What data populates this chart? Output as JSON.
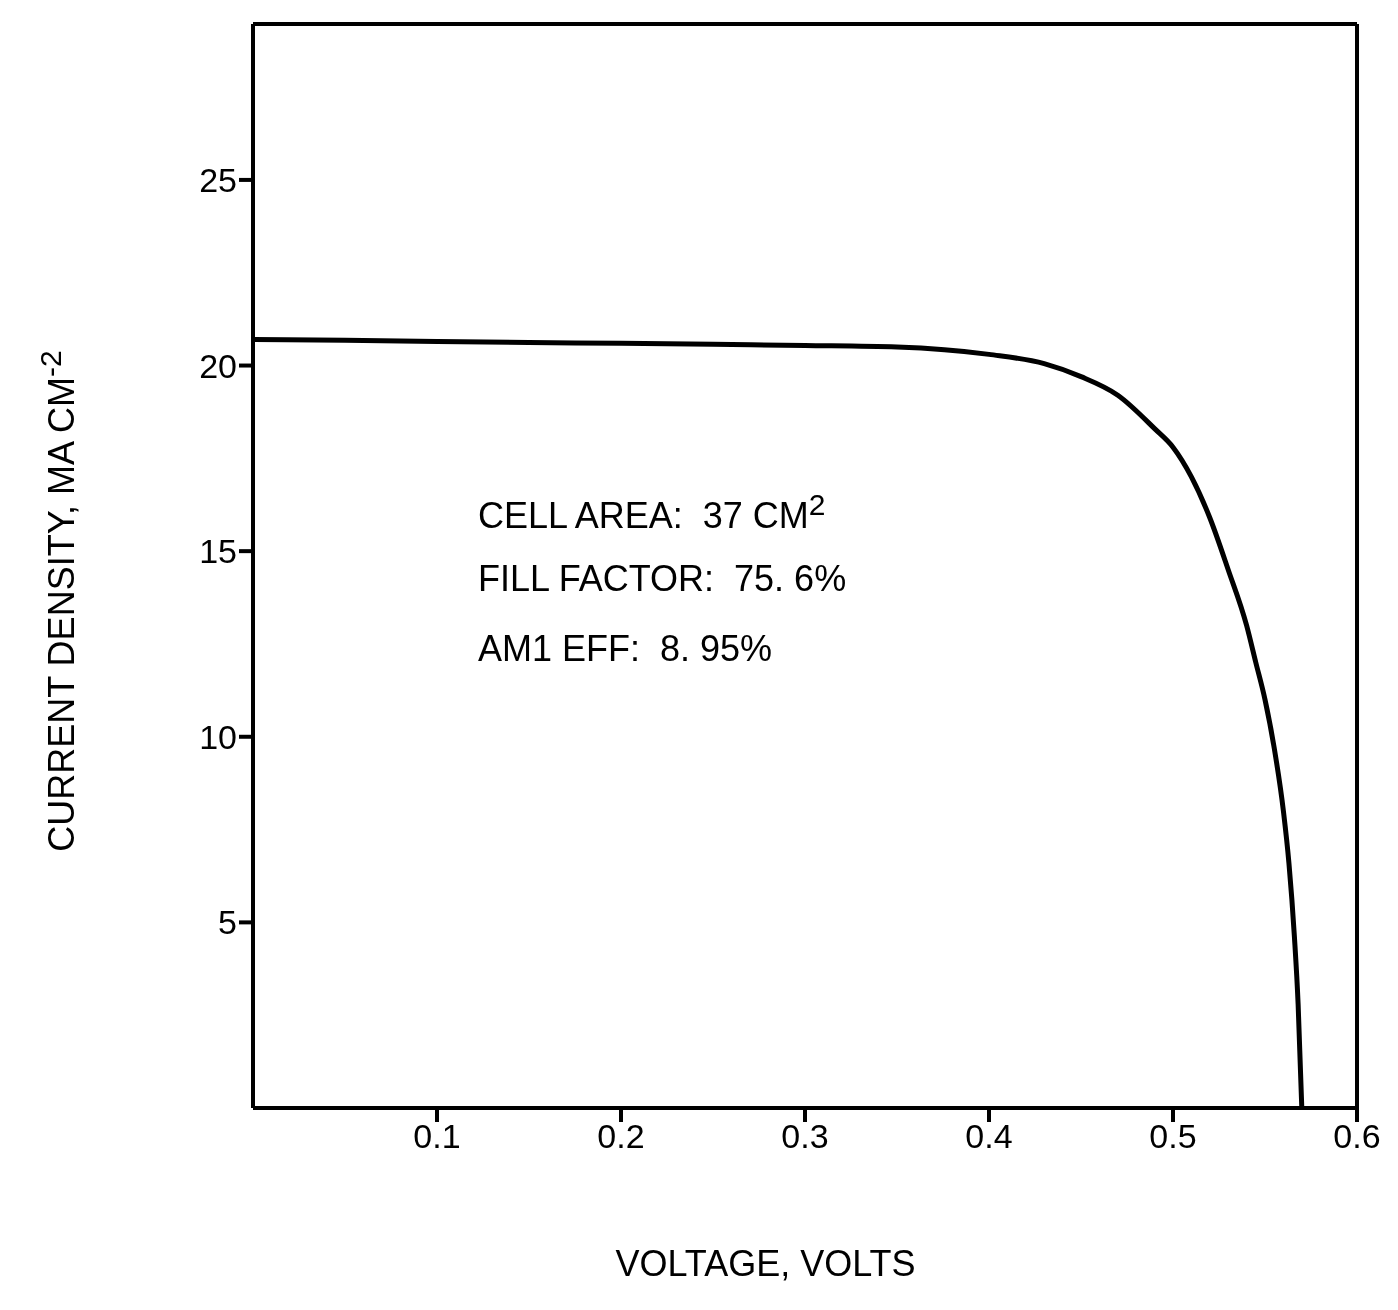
{
  "chart_data": {
    "type": "line",
    "xlabel": "VOLTAGE, VOLTS",
    "ylabel": "CURRENT DENSITY, MA CM$^{-2}$",
    "x": [
      0,
      0.05,
      0.1,
      0.15,
      0.2,
      0.25,
      0.3,
      0.35,
      0.4,
      0.43,
      0.45,
      0.47,
      0.49,
      0.5,
      0.51,
      0.52,
      0.53,
      0.54,
      0.545,
      0.55,
      0.555,
      0.56,
      0.563,
      0.566,
      0.568,
      0.57
    ],
    "series": [
      {
        "color": "#000000",
        "values": [
          20.7,
          20.68,
          20.65,
          20.62,
          20.6,
          20.57,
          20.54,
          20.5,
          20.3,
          20.05,
          19.7,
          19.2,
          18.3,
          17.8,
          17.0,
          15.9,
          14.5,
          13.0,
          12.0,
          11.0,
          9.7,
          8.0,
          6.6,
          4.6,
          2.8,
          0
        ]
      }
    ],
    "xlim": [
      0,
      0.6
    ],
    "ylim": [
      0,
      29.2
    ],
    "xticks": [
      0.1,
      0.2,
      0.3,
      0.4,
      0.5,
      0.6
    ],
    "yticks": [
      5,
      10,
      15,
      20,
      25
    ],
    "annotations": [
      "CELL AREA:  37 CM$^{2}$",
      "FILL FACTOR:  75. 6%",
      "AM1 EFF:  8. 95%"
    ],
    "grid": false,
    "legend": false,
    "marker": "none",
    "line_style": "solid"
  }
}
